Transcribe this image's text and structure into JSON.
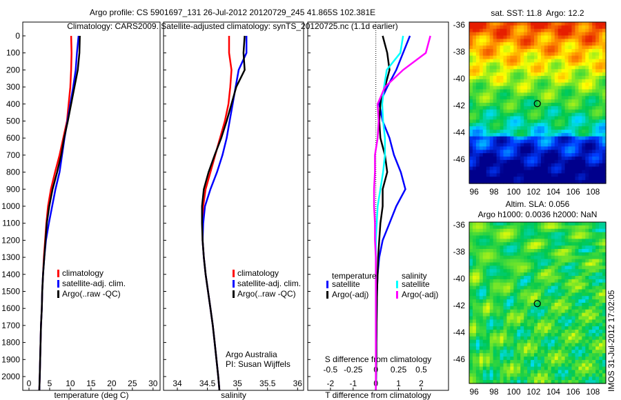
{
  "title_line1": "Argo profile: CS 5901697_131 26-Jul-2012 20120729_245 41.865S 102.381E",
  "title_line2": "Climatology: CARS2009. Satellite-adjusted climatology: synTS_20120725.nc (1.1d earlier)",
  "stamp": "IMOS 31-Jul-2012 17:02:05",
  "chart_data": [
    {
      "type": "line",
      "name": "temperature",
      "xlabel": "temperature (deg C)",
      "xlim": [
        -1.5,
        31.7
      ],
      "ylim": [
        2080,
        0
      ],
      "xticks": [
        0,
        5,
        10,
        15,
        20,
        25,
        30
      ],
      "yticks": [
        0,
        100,
        200,
        300,
        400,
        500,
        600,
        700,
        800,
        900,
        1000,
        1100,
        1200,
        1300,
        1400,
        1500,
        1600,
        1700,
        1800,
        1900,
        2000
      ],
      "depth": [
        0,
        100,
        200,
        300,
        400,
        500,
        600,
        700,
        800,
        900,
        1000,
        1100,
        1200,
        1300,
        1400,
        1500,
        1600,
        1700,
        1800,
        1900,
        2000,
        2080
      ],
      "series": [
        {
          "name": "climatology",
          "color": "#ff0000",
          "values": [
            10.2,
            10.3,
            10.2,
            10.0,
            9.6,
            9.2,
            8.3,
            7.4,
            6.3,
            5.3,
            4.6,
            4.2,
            3.9,
            3.6,
            3.4,
            3.2,
            3.1,
            2.9,
            2.8,
            2.7,
            2.6,
            2.5
          ]
        },
        {
          "name": "satellite-adj. clim.",
          "color": "#0000ff",
          "values": [
            12.0,
            11.6,
            11.3,
            10.7,
            10.0,
            9.3,
            8.6,
            8.0,
            7.4,
            6.4,
            5.6,
            4.8,
            4.1,
            3.7,
            3.4,
            3.2,
            3.1,
            2.9,
            2.8,
            2.7,
            2.6,
            2.5
          ]
        },
        {
          "name": "Argo(..raw -QC)",
          "color": "#000000",
          "values": [
            12.3,
            12.2,
            11.8,
            11.0,
            10.2,
            9.4,
            8.5,
            7.8,
            6.8,
            5.7,
            4.9,
            4.3,
            4.0,
            3.7,
            3.4,
            3.2,
            3.1,
            2.9,
            2.8,
            2.7,
            2.6,
            2.5
          ]
        }
      ],
      "legend": {
        "placement": "bottom-center",
        "entries": [
          "climatology",
          "satellite-adj. clim.",
          "Argo(..raw -QC)"
        ]
      }
    },
    {
      "type": "line",
      "name": "salinity",
      "xlabel": "salinity",
      "xlim": [
        33.77,
        36.1
      ],
      "ylim": [
        2080,
        0
      ],
      "xticks": [
        34,
        34.5,
        35,
        35.5,
        36
      ],
      "depth": [
        0,
        100,
        200,
        300,
        400,
        500,
        600,
        700,
        800,
        900,
        1000,
        1100,
        1200,
        1300,
        1400,
        1500,
        1600,
        1700,
        1800,
        1900,
        2000,
        2080
      ],
      "series": [
        {
          "name": "climatology",
          "color": "#ff0000",
          "values": [
            34.86,
            34.86,
            34.9,
            34.88,
            34.85,
            34.79,
            34.71,
            34.63,
            34.55,
            34.47,
            34.43,
            34.42,
            34.42,
            34.44,
            34.47,
            34.51,
            34.55,
            34.59,
            34.62,
            34.65,
            34.68,
            34.7
          ]
        },
        {
          "name": "satellite-adj. clim.",
          "color": "#0000ff",
          "values": [
            35.15,
            35.15,
            35.02,
            34.97,
            34.92,
            34.87,
            34.82,
            34.75,
            34.66,
            34.55,
            34.46,
            34.43,
            34.42,
            34.44,
            34.47,
            34.51,
            34.55,
            34.59,
            34.62,
            34.65,
            34.68,
            34.7
          ]
        },
        {
          "name": "Argo(..raw -QC)",
          "color": "#000000",
          "values": [
            35.12,
            35.1,
            35.12,
            34.98,
            34.9,
            34.82,
            34.73,
            34.62,
            34.52,
            34.44,
            34.41,
            34.41,
            34.42,
            34.44,
            34.47,
            34.51,
            34.55,
            34.59,
            34.62,
            34.65,
            34.68,
            34.7
          ]
        }
      ],
      "legend": {
        "placement": "bottom-center",
        "entries": [
          "climatology",
          "satellite-adj. clim.",
          "Argo(..raw -QC)"
        ]
      },
      "annotation": [
        "Argo Australia",
        "PI: Susan Wijffels"
      ]
    },
    {
      "type": "line",
      "name": "differences",
      "xlabel": "T difference from climatology",
      "x2label": "S difference from climatology",
      "xlim": [
        -3,
        3.2
      ],
      "x2lim": [
        -0.75,
        0.8
      ],
      "ylim": [
        2080,
        0
      ],
      "xticks": [
        -2,
        -1,
        0,
        1,
        2
      ],
      "x2ticks": [
        "-0.5",
        "-0.25",
        "0",
        "0.25",
        "0.5"
      ],
      "x2tickvals": [
        -0.5,
        -0.25,
        0,
        0.25,
        0.5
      ],
      "depth": [
        0,
        100,
        200,
        300,
        400,
        500,
        600,
        700,
        800,
        900,
        1000,
        1100,
        1200,
        1300,
        1400,
        1500,
        1600,
        1700,
        1800,
        1900,
        2000,
        2080
      ],
      "series": [
        {
          "name": "T satellite",
          "axis": "T",
          "color": "#0000ff",
          "values": [
            1.5,
            1.2,
            0.9,
            0.5,
            0.15,
            0.3,
            0.6,
            0.8,
            1.1,
            1.3,
            0.9,
            0.6,
            0.3,
            0.15,
            0.08,
            0.05,
            0.04,
            0.03,
            0.02,
            0.02,
            0.01,
            0
          ]
        },
        {
          "name": "T Argo(-adj)",
          "axis": "T",
          "color": "#000000",
          "values": [
            0.3,
            0.5,
            0.6,
            0.4,
            0.2,
            0.15,
            0.2,
            0.4,
            0.5,
            0.3,
            0.3,
            0.2,
            0.15,
            0.1,
            0.08,
            0.05,
            0.04,
            0.03,
            0.02,
            0.02,
            0.01,
            0
          ]
        },
        {
          "name": "S satellite",
          "axis": "S",
          "color": "#00ffff",
          "values": [
            0.3,
            0.27,
            0.12,
            0.09,
            0.07,
            0.08,
            0.1,
            0.1,
            0.08,
            0.05,
            0.02,
            0.01,
            0,
            0,
            0,
            0,
            0,
            0,
            0,
            0,
            0,
            0
          ]
        },
        {
          "name": "S Argo(-adj)",
          "axis": "S",
          "color": "#ff00ff",
          "values": [
            0.6,
            0.55,
            0.3,
            0.1,
            0.02,
            0.03,
            0.02,
            -0.01,
            -0.01,
            -0.02,
            -0.02,
            -0.01,
            -0.01,
            0,
            0,
            0,
            0,
            0,
            0,
            0,
            0,
            0
          ]
        }
      ],
      "legend": {
        "placement": "bottom-center",
        "headers": [
          "temperature",
          "salinity"
        ],
        "entries": [
          "satellite",
          "Argo(-adj)",
          "satellite",
          "Argo(-adj)"
        ]
      }
    },
    {
      "type": "heatmap",
      "name": "sst-map",
      "title": "sat. SST: 11.8  Argo: 12.2",
      "xlim": [
        95.5,
        109.3
      ],
      "ylim": [
        -47.8,
        -35.8
      ],
      "xticks": [
        96,
        98,
        100,
        102,
        104,
        106,
        108
      ],
      "yticks": [
        -36,
        -38,
        -40,
        -42,
        -44,
        -46
      ],
      "marker": {
        "lon": 102.381,
        "lat": -41.865
      }
    },
    {
      "type": "heatmap",
      "name": "sla-map",
      "title": [
        "Altim. SLA: 0.056",
        "Argo h1000: 0.0036 h2000: NaN"
      ],
      "xlim": [
        95.5,
        109.3
      ],
      "ylim": [
        -47.8,
        -35.8
      ],
      "xticks": [
        96,
        98,
        100,
        102,
        104,
        106,
        108
      ],
      "yticks": [
        -36,
        -38,
        -40,
        -42,
        -44,
        -46
      ],
      "marker": {
        "lon": 102.381,
        "lat": -41.865
      }
    }
  ]
}
